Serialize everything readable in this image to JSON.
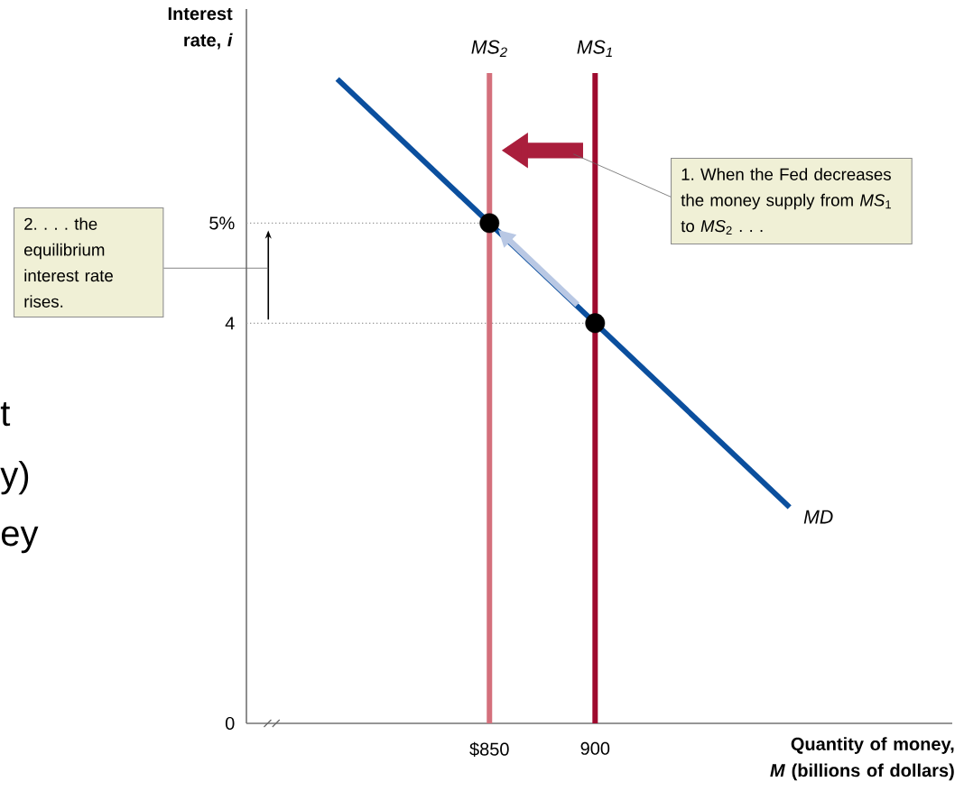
{
  "chart_data": {
    "type": "line",
    "xlabel": "Quantity of money, *M* (billions of dollars)",
    "ylabel": "Interest rate, *i*",
    "xlim": [
      735,
      1069
    ],
    "ylim": [
      0,
      7.14
    ],
    "xticks": [
      {
        "value": 850,
        "label": "$850"
      },
      900
    ],
    "yticks": [
      0,
      4,
      {
        "value": 5,
        "label": "5%"
      }
    ],
    "series": [
      {
        "type": "line",
        "color": "#999999",
        "line_style": "dotted",
        "x": [
          735,
          850
        ],
        "values": [
          5,
          5
        ]
      },
      {
        "type": "line",
        "color": "#999999",
        "line_style": "dotted",
        "x": [
          735,
          900
        ],
        "values": [
          4,
          4
        ]
      },
      {
        "name": "*MS*$_{2}$",
        "color": "#d4707c",
        "x": [
          850,
          850
        ],
        "values": [
          0,
          6.5
        ]
      },
      {
        "name": "*MS*$_{1}$",
        "color": "#9e0a2e",
        "x": [
          900,
          900
        ],
        "values": [
          0,
          6.5
        ]
      },
      {
        "name": "MD",
        "color": "#0b4f9e",
        "x": [
          778,
          992
        ],
        "values": [
          6.44,
          2.16
        ]
      },
      {
        "type": "scatter",
        "color": "#000000",
        "marker": "circle",
        "x": [
          850,
          900
        ],
        "values": [
          5,
          4
        ]
      }
    ],
    "annotations": [
      "1. When the Fed decreases the money supply from *MS*$_{1}$ to *MS*$_{2}$ . . .",
      "2. . . . the equilibrium interest rate rises.",
      "t",
      "y)",
      "ey"
    ]
  }
}
